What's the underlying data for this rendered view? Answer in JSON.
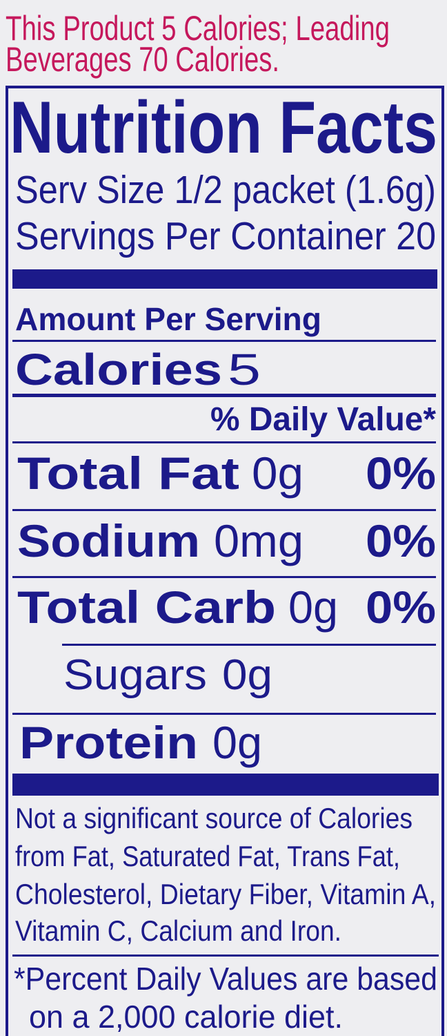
{
  "promo": {
    "line1": "This Product 5 Calories; Leading",
    "line2": "Beverages 70 Calories."
  },
  "label": {
    "title": "Nutrition Facts",
    "serving_size": "Serv Size 1/2 packet (1.6g)",
    "servings_per_container": "Servings Per Container 20",
    "amount_per_serving": "Amount Per Serving",
    "calories": {
      "label": "Calories",
      "value": "5"
    },
    "daily_value_header": "% Daily Value*",
    "nutrients": [
      {
        "label": "Total Fat",
        "amount": "0g",
        "dv": "0%"
      },
      {
        "label": "Sodium",
        "amount": "0mg",
        "dv": "0%"
      },
      {
        "label": "Total Carb",
        "amount": "0g",
        "dv": "0%"
      },
      {
        "label": "Sugars",
        "amount": "0g"
      },
      {
        "label": "Protein",
        "amount": "0g"
      }
    ],
    "not_significant": [
      "Not a significant source of Calories",
      "from Fat, Saturated Fat, Trans Fat,",
      "Cholesterol, Dietary Fiber, Vitamin A,",
      "Vitamin C, Calcium and Iron."
    ],
    "footnote": [
      "*Percent Daily Values are based",
      "on a 2,000 calorie diet."
    ]
  },
  "colors": {
    "ink": "#1c1a8a",
    "promo": "#c5185c",
    "background": "#eeeef1"
  }
}
